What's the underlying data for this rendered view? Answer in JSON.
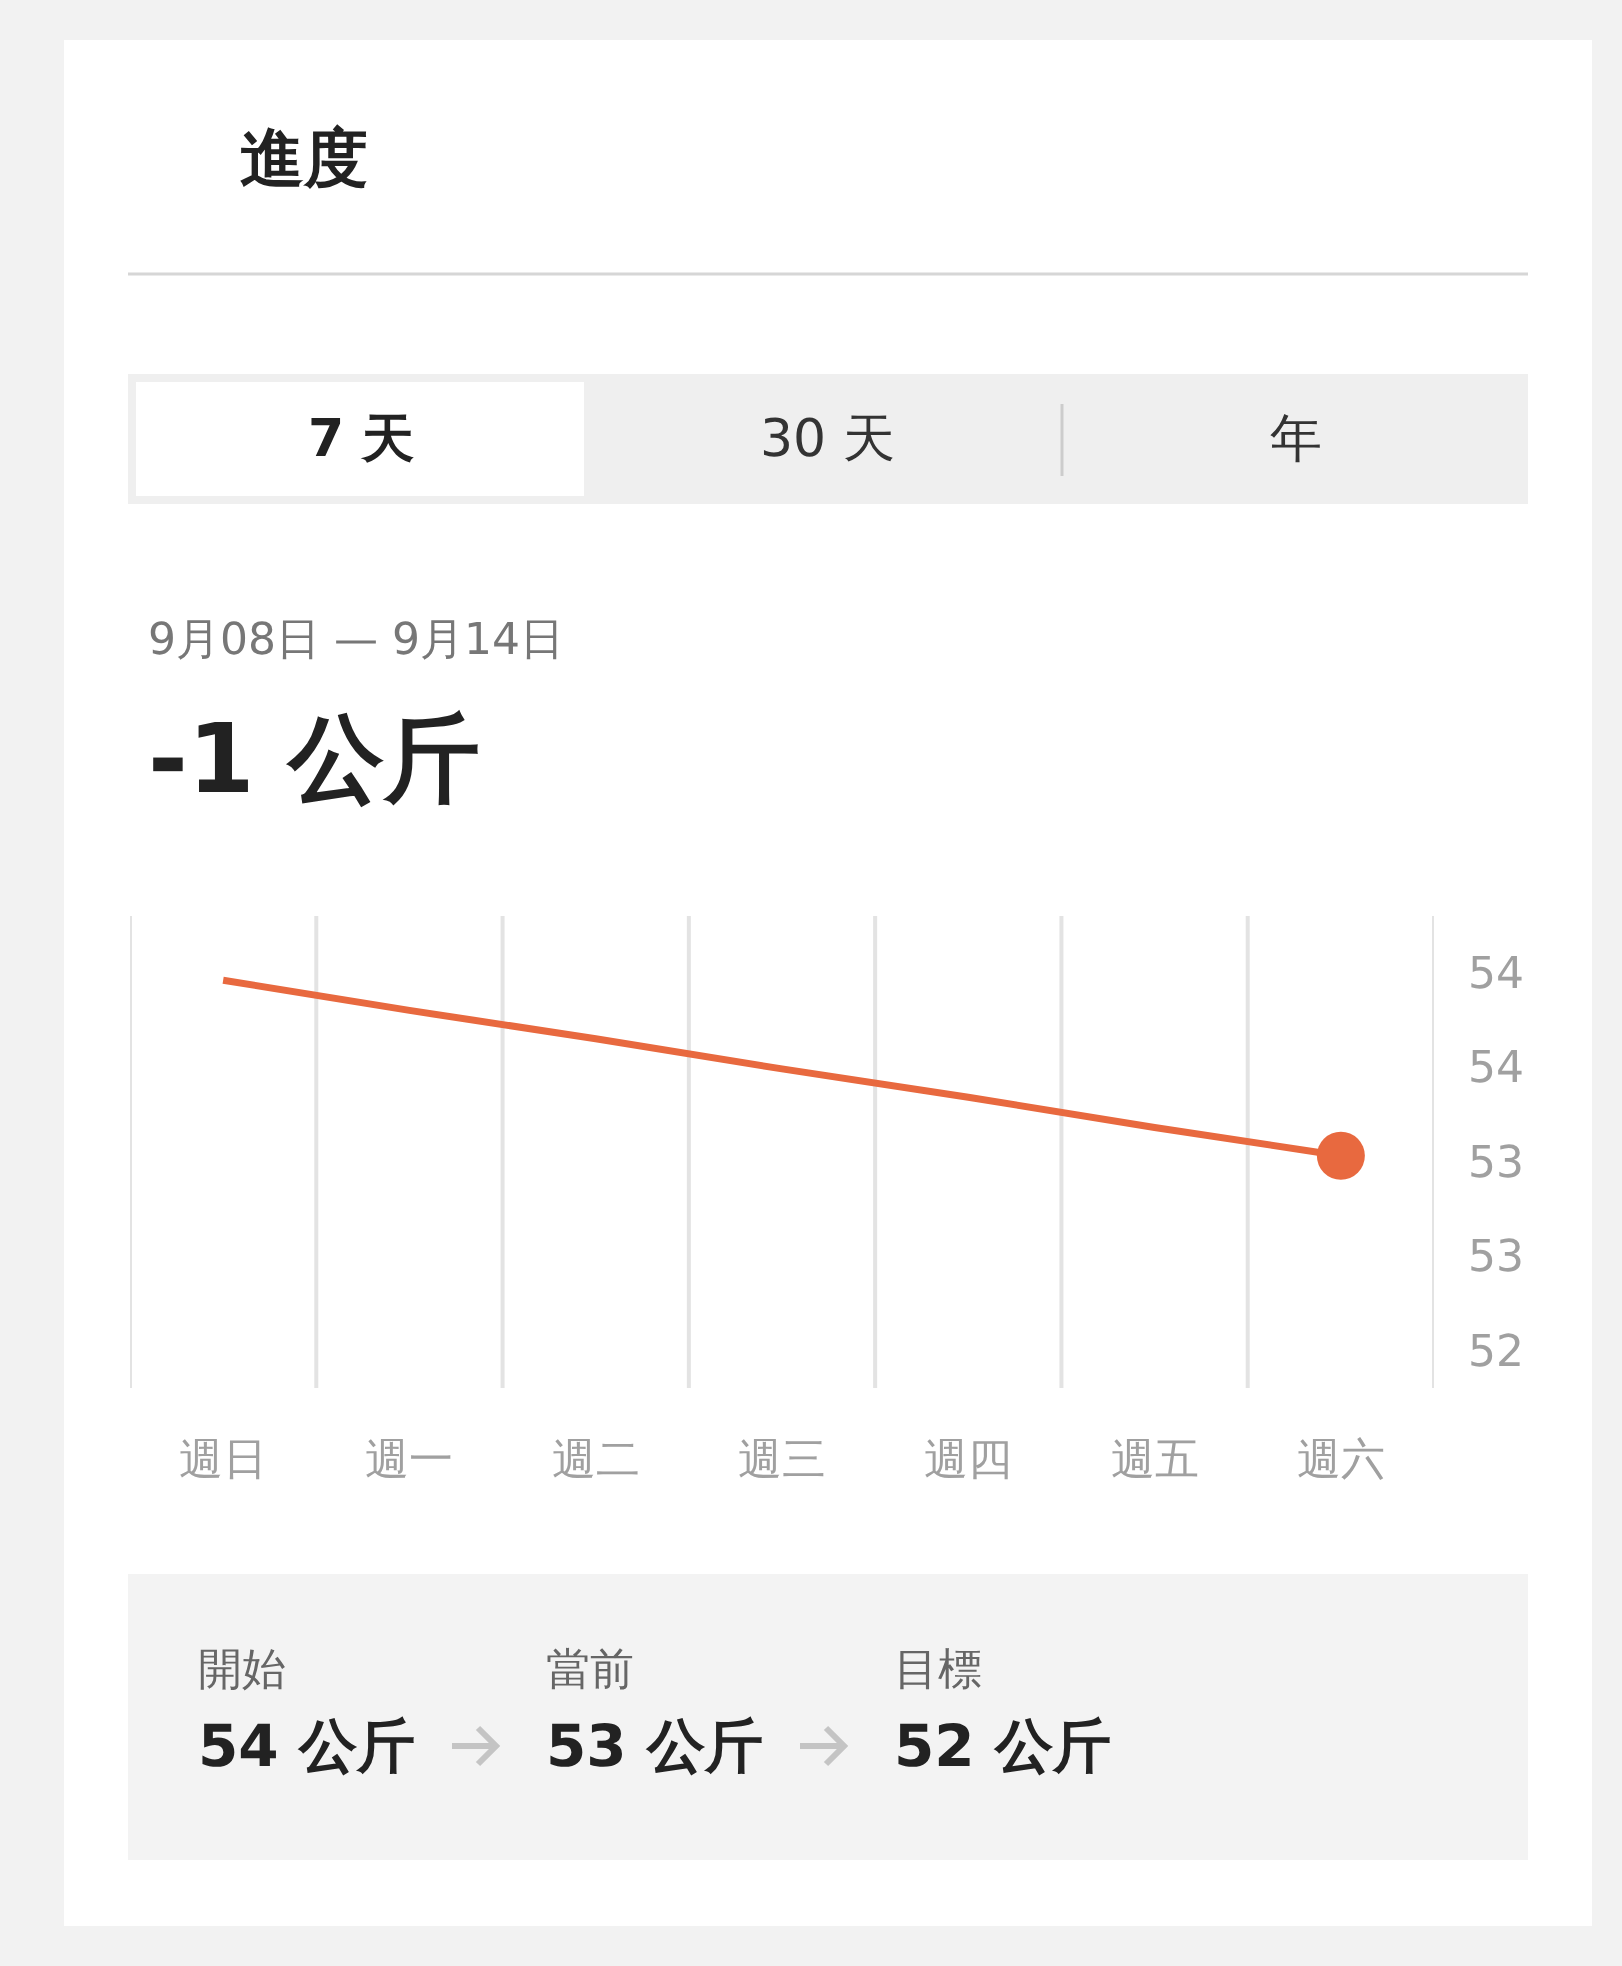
{
  "chart_data": {
    "type": "line",
    "title": "進度",
    "subtitle": "9月08日 — 9月14日",
    "annotations": [
      "7 天",
      "30 天",
      "年",
      "-1 公斤",
      "開始",
      "54 公斤",
      "當前",
      "53 公斤",
      "目標",
      "52 公斤"
    ],
    "categories": [
      "週日",
      "週一",
      "週二",
      "週三",
      "週四",
      "週五",
      "週六"
    ],
    "ylim": [
      51.8,
      54.3
    ],
    "yticks": [
      {
        "value": 54,
        "label": "54"
      },
      {
        "value": 53.5,
        "label": "54"
      },
      {
        "value": 53,
        "label": "53"
      },
      {
        "value": 52.5,
        "label": "53"
      },
      {
        "value": 52,
        "label": "52"
      }
    ],
    "grid": "x",
    "series": [
      {
        "color": "#e8693f",
        "values": [
          53.96,
          53.8,
          53.65,
          53.49,
          53.34,
          53.18,
          53.03
        ]
      },
      {
        "type": "scatter",
        "color": "#e8693f",
        "x": [
          "週六"
        ],
        "values": [
          53.03
        ]
      }
    ]
  }
}
